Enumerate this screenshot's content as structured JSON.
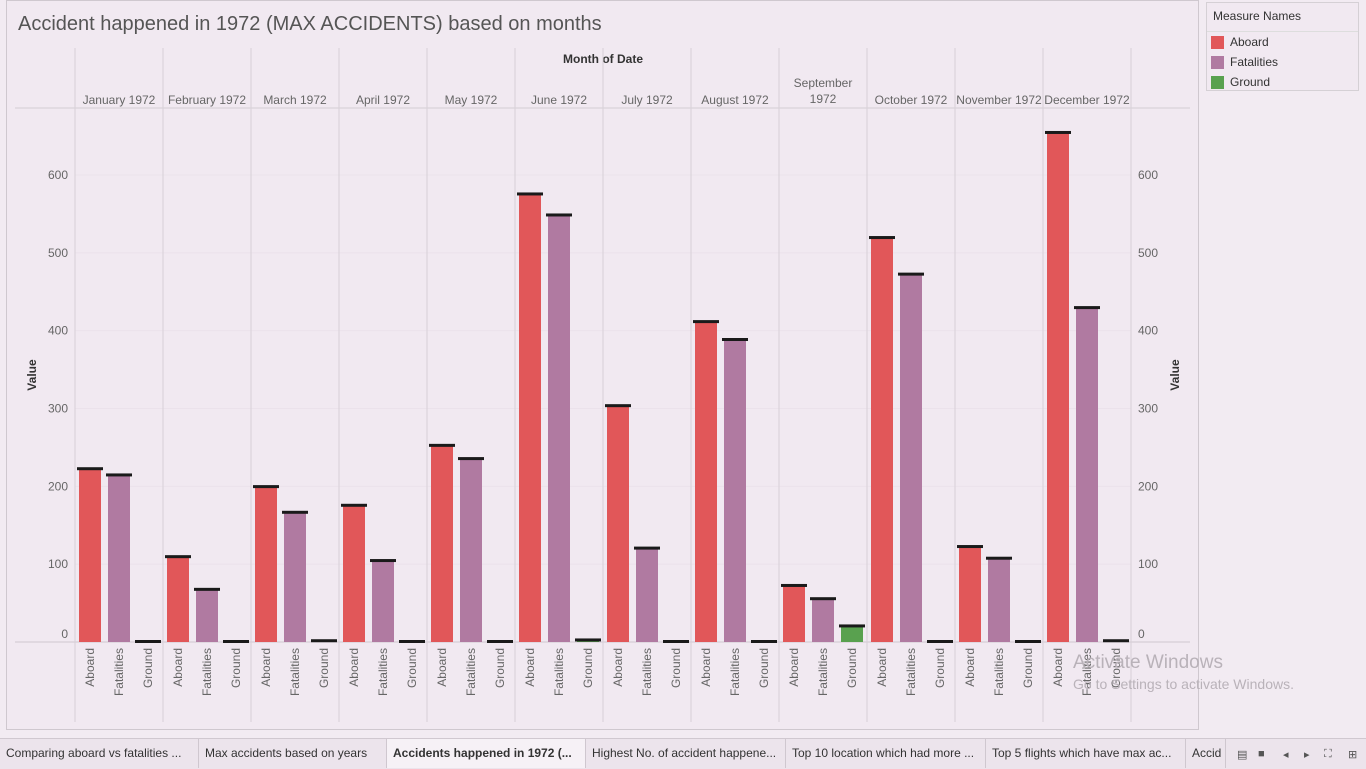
{
  "title": "Accident happened in 1972 (MAX ACCIDENTS) based on months",
  "legend": {
    "title": "Measure Names",
    "items": [
      {
        "label": "Aboard",
        "color": "#e15759"
      },
      {
        "label": "Fatalities",
        "color": "#b07aa1"
      },
      {
        "label": "Ground",
        "color": "#59a14f"
      }
    ]
  },
  "chart_data": {
    "type": "bar",
    "column_header": "Month of Date",
    "ylabel": "Value",
    "ylim": [
      0,
      650
    ],
    "yticks": [
      0,
      100,
      200,
      300,
      400,
      500,
      600
    ],
    "measures": [
      "Aboard",
      "Fatalities",
      "Ground"
    ],
    "colors": {
      "Aboard": "#e15759",
      "Fatalities": "#b07aa1",
      "Ground": "#59a14f"
    },
    "months": [
      {
        "label": "January 1972",
        "values": [
          222,
          214,
          0
        ]
      },
      {
        "label": "February 1972",
        "values": [
          109,
          67,
          0
        ]
      },
      {
        "label": "March 1972",
        "values": [
          199,
          166,
          1
        ]
      },
      {
        "label": "April 1972",
        "values": [
          175,
          104,
          0
        ]
      },
      {
        "label": "May 1972",
        "values": [
          252,
          235,
          0
        ]
      },
      {
        "label": "June 1972",
        "values": [
          575,
          548,
          2
        ]
      },
      {
        "label": "July 1972",
        "values": [
          303,
          120,
          0
        ]
      },
      {
        "label": "August 1972",
        "values": [
          411,
          388,
          0
        ]
      },
      {
        "label": "September 1972",
        "values": [
          72,
          55,
          20
        ]
      },
      {
        "label": "October 1972",
        "values": [
          519,
          472,
          0
        ]
      },
      {
        "label": "November 1972",
        "values": [
          122,
          107,
          0
        ]
      },
      {
        "label": "December 1972",
        "values": [
          654,
          429,
          1
        ]
      }
    ]
  },
  "watermark": {
    "line1": "Activate Windows",
    "line2": "Go to Settings to activate Windows."
  },
  "tabs": [
    {
      "label": "Comparing  aboard  vs fatalities ...",
      "active": false
    },
    {
      "label": "Max accidents based on years",
      "active": false
    },
    {
      "label": "Accidents happened in 1972 (...",
      "active": true
    },
    {
      "label": "Highest No. of accident happene...",
      "active": false
    },
    {
      "label": "Top 10 location which had more ...",
      "active": false
    },
    {
      "label": "Top 5 flights which have max ac...",
      "active": false
    },
    {
      "label": "Accid",
      "active": false
    }
  ]
}
